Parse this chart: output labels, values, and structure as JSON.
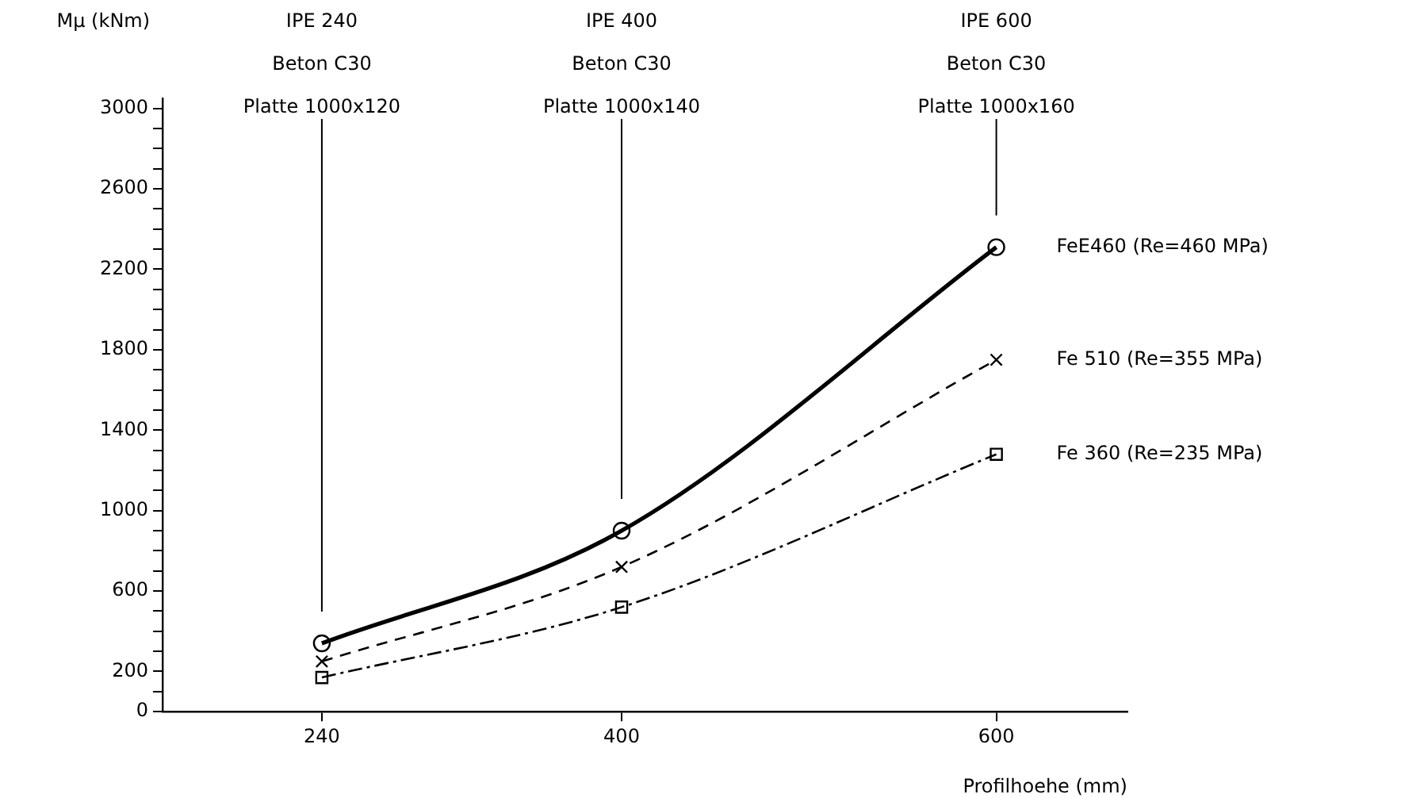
{
  "chart_data": {
    "type": "line",
    "xlabel": "Profilhoehe (mm)",
    "ylabel": "Mμ (kNm)",
    "x": [
      240,
      400,
      600
    ],
    "series": [
      {
        "name": "FeE460 (Re=460 MPa)",
        "color": "#000000",
        "values": [
          340,
          900,
          2310
        ],
        "marker": "circle",
        "line_style": "solid"
      },
      {
        "name": "Fe 510 (Re=355 MPa)",
        "color": "#000000",
        "values": [
          250,
          720,
          1750
        ],
        "marker": "cross",
        "line_style": "dashed"
      },
      {
        "name": "Fe 360 (Re=235 MPa)",
        "color": "#000000",
        "values": [
          170,
          520,
          1280
        ],
        "marker": "square",
        "line_style": "dotted"
      }
    ],
    "xlim": [
      155,
      670
    ],
    "xticks": [
      240,
      400,
      600
    ],
    "ylim": [
      0,
      3050
    ],
    "yticks": [
      0,
      {
        "value": 100,
        "label": null
      },
      200,
      {
        "value": 300,
        "label": null
      },
      {
        "value": 400,
        "label": null
      },
      {
        "value": 500,
        "label": null
      },
      600,
      {
        "value": 700,
        "label": null
      },
      {
        "value": 800,
        "label": null
      },
      {
        "value": 900,
        "label": null
      },
      1000,
      {
        "value": 1100,
        "label": null
      },
      {
        "value": 1200,
        "label": null
      },
      {
        "value": 1300,
        "label": null
      },
      1400,
      {
        "value": 1500,
        "label": null
      },
      {
        "value": 1600,
        "label": null
      },
      {
        "value": 1700,
        "label": null
      },
      1800,
      {
        "value": 1900,
        "label": null
      },
      {
        "value": 2000,
        "label": null
      },
      {
        "value": 2100,
        "label": null
      },
      2200,
      {
        "value": 2300,
        "label": null
      },
      {
        "value": 2400,
        "label": null
      },
      {
        "value": 2500,
        "label": null
      },
      2600,
      {
        "value": 2700,
        "label": null
      },
      {
        "value": 2800,
        "label": null
      },
      {
        "value": 2900,
        "label": null
      },
      3000
    ],
    "ref_lines": [
      {
        "axis": "x",
        "value": 240,
        "label": "IPE 240\nBeton C30\nPlatte 1000x120"
      },
      {
        "axis": "x",
        "value": 400,
        "label": "IPE 400\nBeton C30\nPlatte 1000x140"
      },
      {
        "axis": "x",
        "value": 600,
        "label": "IPE 600\nBeton C30\nPlatte 1000x160"
      }
    ],
    "grid": false,
    "legend": false
  }
}
